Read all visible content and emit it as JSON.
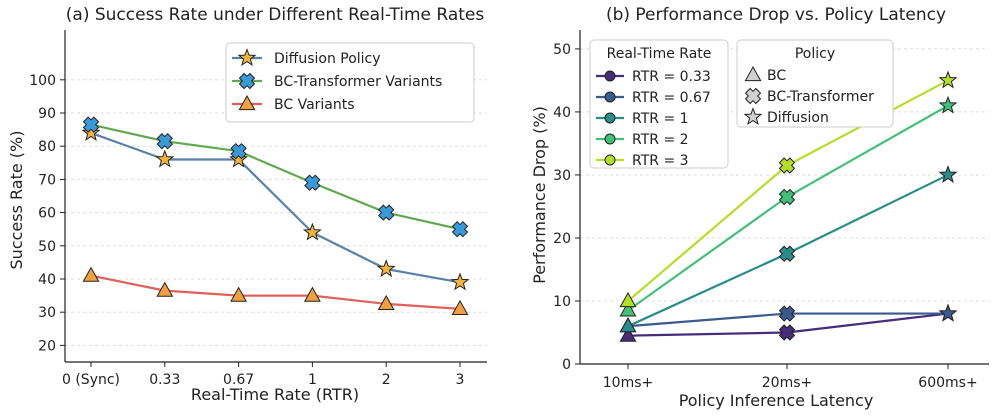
{
  "chart_data": [
    {
      "type": "line",
      "title": "(a) Success Rate under Different Real-Time Rates",
      "xlabel": "Real-Time Rate (RTR)",
      "ylabel": "Success Rate (%)",
      "categories": [
        "0 (Sync)",
        "0.33",
        "0.67",
        "1",
        "2",
        "3"
      ],
      "ylim": [
        15,
        115
      ],
      "yticks": [
        20,
        30,
        40,
        50,
        60,
        70,
        80,
        90,
        100
      ],
      "grid": true,
      "legend_position": "top-right",
      "series": [
        {
          "name": "Diffusion Policy",
          "values": [
            84,
            76,
            76,
            54,
            43,
            39
          ],
          "color": "#5a80a8",
          "marker": "star",
          "marker_color": "#f2b440"
        },
        {
          "name": "BC-Transformer Variants",
          "values": [
            86.5,
            81.5,
            78.5,
            69,
            60,
            55
          ],
          "color": "#62a84f",
          "marker": "x",
          "marker_color": "#3a9ad8"
        },
        {
          "name": "BC Variants",
          "values": [
            41,
            36.5,
            35,
            35,
            32.5,
            31
          ],
          "color": "#e0605a",
          "marker": "triangle",
          "marker_color": "#f0a040"
        }
      ]
    },
    {
      "type": "line",
      "title": "(b) Performance Drop vs. Policy Latency",
      "xlabel": "Policy Inference Latency",
      "ylabel": "Performance Drop (%)",
      "categories": [
        "10ms+",
        "20ms+",
        "600ms+"
      ],
      "ylim": [
        0,
        53
      ],
      "yticks": [
        0,
        10,
        20,
        30,
        40,
        50
      ],
      "grid": true,
      "legend_position": "top-left",
      "legend_title": "Real-Time Rate",
      "legend2_title": "Policy",
      "legend2_entries": [
        {
          "label": "BC",
          "marker": "triangle"
        },
        {
          "label": "BC-Transformer",
          "marker": "x"
        },
        {
          "label": "Diffusion",
          "marker": "star"
        }
      ],
      "series": [
        {
          "name": "RTR = 0.33",
          "values": [
            4.5,
            5,
            8
          ],
          "color": "#472c7a"
        },
        {
          "name": "RTR = 0.67",
          "values": [
            6,
            8,
            8
          ],
          "color": "#3b5a8c"
        },
        {
          "name": "RTR = 1",
          "values": [
            6,
            17.5,
            30
          ],
          "color": "#2a8c8a"
        },
        {
          "name": "RTR = 2",
          "values": [
            8.5,
            26.5,
            41
          ],
          "color": "#43bf78"
        },
        {
          "name": "RTR = 3",
          "values": [
            10,
            31.5,
            45
          ],
          "color": "#b5de2b"
        }
      ],
      "point_markers": [
        "triangle",
        "x",
        "star"
      ]
    }
  ]
}
